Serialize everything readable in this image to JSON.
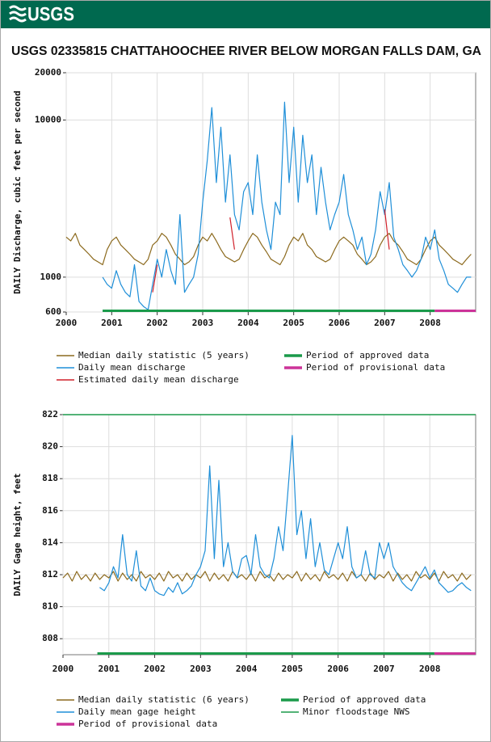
{
  "header": {
    "logo": "USGS",
    "title": "USGS 02335815 CHATTAHOOCHEE RIVER BELOW MORGAN FALLS DAM, GA"
  },
  "chart_data": [
    {
      "type": "line",
      "y_label": "DAILY Discharge, cubic feet per second",
      "log_scale": true,
      "grid": true,
      "xlim": [
        2000,
        2009
      ],
      "ylim": [
        600,
        20000
      ],
      "xticks": [
        2000,
        2001,
        2002,
        2003,
        2004,
        2005,
        2006,
        2007,
        2008
      ],
      "yticks": [
        600,
        1000,
        10000,
        20000
      ],
      "x": [
        2000.0,
        2000.1,
        2000.2,
        2000.3,
        2000.4,
        2000.5,
        2000.6,
        2000.7,
        2000.8,
        2000.9,
        2001.0,
        2001.1,
        2001.2,
        2001.3,
        2001.4,
        2001.5,
        2001.6,
        2001.7,
        2001.8,
        2001.9,
        2002.0,
        2002.1,
        2002.2,
        2002.3,
        2002.4,
        2002.5,
        2002.6,
        2002.7,
        2002.8,
        2002.9,
        2003.0,
        2003.1,
        2003.2,
        2003.3,
        2003.4,
        2003.5,
        2003.6,
        2003.7,
        2003.8,
        2003.9,
        2004.0,
        2004.1,
        2004.2,
        2004.3,
        2004.4,
        2004.5,
        2004.6,
        2004.7,
        2004.8,
        2004.9,
        2005.0,
        2005.1,
        2005.2,
        2005.3,
        2005.4,
        2005.5,
        2005.6,
        2005.7,
        2005.8,
        2005.9,
        2006.0,
        2006.1,
        2006.2,
        2006.3,
        2006.4,
        2006.5,
        2006.6,
        2006.7,
        2006.8,
        2006.9,
        2007.0,
        2007.1,
        2007.2,
        2007.3,
        2007.4,
        2007.5,
        2007.6,
        2007.7,
        2007.8,
        2007.9,
        2008.0,
        2008.1,
        2008.2,
        2008.3,
        2008.4,
        2008.5,
        2008.6,
        2008.7,
        2008.8,
        2008.9
      ],
      "series": [
        {
          "name": "Median daily statistic (5 years)",
          "color": "#8c6a1e",
          "values": [
            1800,
            1700,
            1900,
            1600,
            1500,
            1400,
            1300,
            1250,
            1200,
            1500,
            1700,
            1800,
            1600,
            1500,
            1400,
            1300,
            1250,
            1200,
            1300,
            1600,
            1700,
            1900,
            1800,
            1600,
            1400,
            1300,
            1200,
            1250,
            1350,
            1600,
            1800,
            1700,
            1900,
            1700,
            1500,
            1350,
            1300,
            1250,
            1300,
            1500,
            1700,
            1900,
            1800,
            1600,
            1450,
            1300,
            1250,
            1200,
            1350,
            1600,
            1800,
            1700,
            1900,
            1600,
            1500,
            1350,
            1300,
            1250,
            1300,
            1500,
            1700,
            1800,
            1700,
            1600,
            1400,
            1300,
            1200,
            1250,
            1350,
            1600,
            1800,
            1900,
            1700,
            1600,
            1450,
            1300,
            1250,
            1200,
            1300,
            1500,
            1700,
            1800,
            1600,
            1500,
            1400,
            1300,
            1250,
            1200,
            1300,
            1400
          ]
        },
        {
          "name": "Daily mean discharge",
          "color": "#1f8fd8",
          "values": [
            null,
            null,
            null,
            null,
            null,
            null,
            null,
            null,
            1000,
            900,
            850,
            1100,
            900,
            800,
            750,
            1200,
            700,
            650,
            620,
            900,
            1300,
            1000,
            1500,
            1100,
            900,
            2500,
            800,
            900,
            1000,
            1400,
            3000,
            5500,
            12000,
            4000,
            9000,
            3000,
            6000,
            2500,
            2000,
            3500,
            4000,
            2500,
            6000,
            3000,
            2000,
            1500,
            3000,
            2500,
            13000,
            4000,
            9000,
            3000,
            8000,
            4000,
            6000,
            2500,
            5000,
            3000,
            2000,
            2500,
            3000,
            4500,
            2500,
            2000,
            1500,
            1800,
            1200,
            1400,
            2000,
            3500,
            2500,
            4000,
            1800,
            1500,
            1200,
            1100,
            1000,
            1100,
            1300,
            1800,
            1500,
            2000,
            1300,
            1100,
            900,
            850,
            800,
            900,
            1000,
            1000
          ]
        },
        {
          "name": "Estimated daily mean discharge",
          "color": "#d0202a",
          "values": [
            null,
            null,
            null,
            null,
            null,
            null,
            null,
            null,
            null,
            null,
            null,
            null,
            null,
            null,
            null,
            null,
            null,
            null,
            null,
            800,
            1200,
            null,
            null,
            null,
            null,
            null,
            null,
            null,
            null,
            null,
            null,
            null,
            null,
            null,
            null,
            null,
            2400,
            1500,
            null,
            null,
            null,
            null,
            null,
            null,
            null,
            null,
            null,
            null,
            null,
            null,
            null,
            null,
            null,
            null,
            null,
            null,
            null,
            null,
            null,
            null,
            null,
            null,
            null,
            null,
            null,
            null,
            null,
            null,
            null,
            null,
            2700,
            1500,
            null,
            null,
            null,
            null,
            null,
            null,
            null,
            null,
            null,
            null,
            null,
            null,
            null,
            null,
            null,
            null,
            null,
            null
          ]
        }
      ],
      "periods": [
        {
          "name": "Period of approved data",
          "color": "#1a9a4a",
          "start": 2000.8,
          "end": 2008.1
        },
        {
          "name": "Period of provisional data",
          "color": "#cc3399",
          "start": 2008.1,
          "end": 2009
        }
      ]
    },
    {
      "type": "line",
      "y_label": "DAILY Gage height, feet",
      "log_scale": false,
      "grid": true,
      "xlim": [
        2000,
        2009
      ],
      "ylim": [
        807,
        822
      ],
      "xticks": [
        2000,
        2001,
        2002,
        2003,
        2004,
        2005,
        2006,
        2007,
        2008
      ],
      "yticks": [
        808,
        810,
        812,
        814,
        816,
        818,
        820,
        822
      ],
      "x": [
        2000.0,
        2000.1,
        2000.2,
        2000.3,
        2000.4,
        2000.5,
        2000.6,
        2000.7,
        2000.8,
        2000.9,
        2001.0,
        2001.1,
        2001.2,
        2001.3,
        2001.4,
        2001.5,
        2001.6,
        2001.7,
        2001.8,
        2001.9,
        2002.0,
        2002.1,
        2002.2,
        2002.3,
        2002.4,
        2002.5,
        2002.6,
        2002.7,
        2002.8,
        2002.9,
        2003.0,
        2003.1,
        2003.2,
        2003.3,
        2003.4,
        2003.5,
        2003.6,
        2003.7,
        2003.8,
        2003.9,
        2004.0,
        2004.1,
        2004.2,
        2004.3,
        2004.4,
        2004.5,
        2004.6,
        2004.7,
        2004.8,
        2004.9,
        2005.0,
        2005.1,
        2005.2,
        2005.3,
        2005.4,
        2005.5,
        2005.6,
        2005.7,
        2005.8,
        2005.9,
        2006.0,
        2006.1,
        2006.2,
        2006.3,
        2006.4,
        2006.5,
        2006.6,
        2006.7,
        2006.8,
        2006.9,
        2007.0,
        2007.1,
        2007.2,
        2007.3,
        2007.4,
        2007.5,
        2007.6,
        2007.7,
        2007.8,
        2007.9,
        2008.0,
        2008.1,
        2008.2,
        2008.3,
        2008.4,
        2008.5,
        2008.6,
        2008.7,
        2008.8,
        2008.9
      ],
      "series": [
        {
          "name": "Median daily statistic (6 years)",
          "color": "#8c6a1e",
          "values": [
            811.8,
            812.1,
            811.6,
            812.2,
            811.7,
            812.0,
            811.6,
            812.1,
            811.7,
            812.0,
            811.8,
            812.2,
            811.6,
            812.1,
            811.7,
            812.0,
            811.6,
            812.2,
            811.8,
            812.0,
            811.7,
            812.1,
            811.6,
            812.2,
            811.8,
            812.0,
            811.6,
            812.1,
            811.7,
            812.0,
            811.8,
            812.2,
            811.6,
            812.1,
            811.7,
            812.0,
            811.6,
            812.2,
            811.8,
            812.0,
            811.7,
            812.1,
            811.6,
            812.2,
            811.8,
            812.0,
            811.6,
            812.1,
            811.7,
            812.0,
            811.8,
            812.2,
            811.6,
            812.1,
            811.7,
            812.0,
            811.6,
            812.2,
            811.8,
            812.0,
            811.7,
            812.1,
            811.6,
            812.2,
            811.8,
            812.0,
            811.6,
            812.1,
            811.7,
            812.0,
            811.8,
            812.2,
            811.6,
            812.1,
            811.7,
            812.0,
            811.6,
            812.2,
            811.8,
            812.0,
            811.7,
            812.1,
            811.6,
            812.2,
            811.8,
            812.0,
            811.6,
            812.1,
            811.7,
            812.0
          ]
        },
        {
          "name": "Daily mean gage height",
          "color": "#1f8fd8",
          "values": [
            null,
            null,
            null,
            null,
            null,
            null,
            null,
            null,
            811.2,
            811.0,
            811.5,
            812.5,
            811.8,
            814.5,
            812.0,
            811.6,
            813.5,
            811.3,
            811.0,
            811.8,
            811.0,
            810.8,
            810.7,
            811.2,
            810.9,
            811.5,
            810.8,
            811.0,
            811.3,
            812.0,
            812.5,
            813.5,
            818.8,
            813.0,
            817.9,
            812.5,
            814.0,
            812.2,
            811.8,
            813.0,
            813.2,
            812.0,
            814.5,
            812.5,
            812.0,
            811.8,
            813.0,
            815.0,
            813.5,
            817.0,
            820.7,
            814.5,
            816.0,
            813.0,
            815.5,
            812.5,
            814.0,
            812.3,
            812.0,
            813.0,
            814.0,
            813.0,
            815.0,
            812.5,
            811.8,
            812.0,
            813.5,
            812.0,
            811.8,
            814.0,
            813.0,
            814.0,
            812.5,
            812.0,
            811.5,
            811.2,
            811.0,
            811.5,
            812.0,
            812.5,
            811.8,
            812.3,
            811.5,
            811.2,
            810.9,
            811.0,
            811.3,
            811.5,
            811.2,
            811.0
          ]
        }
      ],
      "periods": [
        {
          "name": "Period of approved data",
          "color": "#1a9a4a",
          "start": 2000.75,
          "end": 2008.1
        },
        {
          "name": "Period of provisional data",
          "color": "#cc3399",
          "start": 2008.1,
          "end": 2009
        }
      ],
      "floodstage": {
        "name": "Minor floodstage NWS",
        "color": "#1a9a4a",
        "value": 822
      }
    }
  ]
}
